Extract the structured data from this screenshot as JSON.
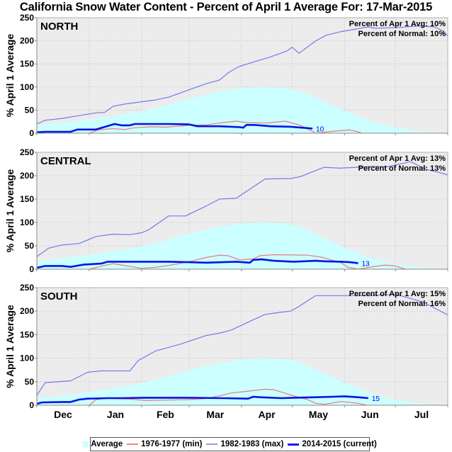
{
  "chart_data": {
    "type": "area",
    "title": "California Snow Water Content - Percent of April 1 Average For: 17-Mar-2015",
    "xlabel": "",
    "ylabel": "% April 1 Average",
    "ylim": [
      0,
      250
    ],
    "yticks": [
      0,
      50,
      100,
      150,
      200,
      250
    ],
    "x_unit": "days since Dec 1",
    "xlim": [
      0,
      243
    ],
    "months": [
      {
        "label": "Dec",
        "start": 0,
        "end": 31
      },
      {
        "label": "Jan",
        "start": 31,
        "end": 62
      },
      {
        "label": "Feb",
        "start": 62,
        "end": 90
      },
      {
        "label": "Mar",
        "start": 90,
        "end": 121
      },
      {
        "label": "Apr",
        "start": 121,
        "end": 151
      },
      {
        "label": "May",
        "start": 151,
        "end": 182
      },
      {
        "label": "Jun",
        "start": 182,
        "end": 212
      },
      {
        "label": "Jul",
        "start": 212,
        "end": 243
      }
    ],
    "grid": true,
    "legend_position": "bottom-center",
    "legend": [
      {
        "name": "Average",
        "kind": "area",
        "color": "#ccffff"
      },
      {
        "name": "1976-1977 (min)",
        "kind": "line",
        "color": "#ee7777"
      },
      {
        "name": "1982-1983 (max)",
        "kind": "line",
        "color": "#7777ee"
      },
      {
        "name": "2014-2015 (current)",
        "kind": "line",
        "color": "#0000ee"
      }
    ],
    "colors": {
      "average": "#ccffff",
      "min": "#ee7777",
      "max": "#7777ee",
      "current": "#0a14e0",
      "plot_bg": "#ececec",
      "grid": "#d0d0d0"
    },
    "panels": [
      {
        "name": "NORTH",
        "stat_apr1": "Percent of Apr 1 Avg: 10%",
        "stat_normal": "Percent of Normal: 10%",
        "end_value_label": "10",
        "average": [
          [
            0,
            17
          ],
          [
            15,
            23
          ],
          [
            31,
            30
          ],
          [
            46,
            38
          ],
          [
            62,
            48
          ],
          [
            76,
            60
          ],
          [
            90,
            75
          ],
          [
            105,
            88
          ],
          [
            121,
            97
          ],
          [
            131,
            100
          ],
          [
            143,
            99
          ],
          [
            151,
            95
          ],
          [
            160,
            85
          ],
          [
            170,
            68
          ],
          [
            182,
            48
          ],
          [
            197,
            27
          ],
          [
            212,
            12
          ],
          [
            230,
            3
          ],
          [
            243,
            0
          ]
        ],
        "min_1976_1977": [
          [
            31,
            0
          ],
          [
            36,
            7
          ],
          [
            45,
            10
          ],
          [
            52,
            8
          ],
          [
            58,
            12
          ],
          [
            68,
            14
          ],
          [
            76,
            13
          ],
          [
            90,
            17
          ],
          [
            100,
            18
          ],
          [
            108,
            22
          ],
          [
            118,
            26
          ],
          [
            124,
            23
          ],
          [
            136,
            22
          ],
          [
            147,
            26
          ],
          [
            155,
            18
          ],
          [
            161,
            8
          ],
          [
            165,
            0
          ],
          [
            175,
            4
          ],
          [
            185,
            7
          ],
          [
            190,
            3
          ],
          [
            192,
            0
          ]
        ],
        "max_1982_1983": [
          [
            0,
            20
          ],
          [
            5,
            28
          ],
          [
            15,
            32
          ],
          [
            25,
            38
          ],
          [
            35,
            44
          ],
          [
            40,
            45
          ],
          [
            45,
            58
          ],
          [
            52,
            63
          ],
          [
            70,
            72
          ],
          [
            78,
            78
          ],
          [
            100,
            107
          ],
          [
            108,
            115
          ],
          [
            113,
            130
          ],
          [
            115,
            135
          ],
          [
            120,
            145
          ],
          [
            138,
            165
          ],
          [
            148,
            178
          ],
          [
            151,
            186
          ],
          [
            155,
            173
          ],
          [
            165,
            200
          ],
          [
            171,
            212
          ],
          [
            180,
            220
          ],
          [
            196,
            230
          ],
          [
            200,
            227
          ],
          [
            215,
            229
          ],
          [
            225,
            232
          ],
          [
            235,
            230
          ],
          [
            240,
            222
          ],
          [
            247,
            195
          ],
          [
            249,
            180
          ],
          [
            255,
            172
          ],
          [
            262,
            162
          ],
          [
            267,
            150
          ],
          [
            270,
            138
          ],
          [
            273,
            121
          ],
          [
            276,
            105
          ],
          [
            280,
            68
          ],
          [
            290,
            47
          ],
          [
            300,
            32
          ],
          [
            307,
            24
          ],
          [
            309,
            27
          ],
          [
            314,
            18
          ],
          [
            320,
            0
          ]
        ],
        "current_2014_2015": [
          [
            0,
            2
          ],
          [
            5,
            3
          ],
          [
            20,
            3
          ],
          [
            24,
            8
          ],
          [
            35,
            8
          ],
          [
            46,
            20
          ],
          [
            50,
            17
          ],
          [
            55,
            17
          ],
          [
            58,
            20
          ],
          [
            78,
            20
          ],
          [
            90,
            19
          ],
          [
            95,
            15
          ],
          [
            108,
            15
          ],
          [
            120,
            13
          ],
          [
            122,
            12
          ],
          [
            124,
            18
          ],
          [
            128,
            18
          ],
          [
            132,
            17
          ],
          [
            138,
            15
          ],
          [
            150,
            14
          ],
          [
            160,
            11
          ],
          [
            163,
            10
          ]
        ]
      },
      {
        "name": "CENTRAL",
        "stat_apr1": "Percent of Apr 1 Avg: 13%",
        "stat_normal": "Percent of Normal: 13%",
        "end_value_label": "13",
        "average": [
          [
            0,
            17
          ],
          [
            15,
            24
          ],
          [
            31,
            31
          ],
          [
            46,
            39
          ],
          [
            62,
            49
          ],
          [
            76,
            61
          ],
          [
            90,
            76
          ],
          [
            105,
            89
          ],
          [
            121,
            97
          ],
          [
            131,
            100
          ],
          [
            143,
            99
          ],
          [
            151,
            95
          ],
          [
            160,
            84
          ],
          [
            170,
            67
          ],
          [
            182,
            46
          ],
          [
            197,
            25
          ],
          [
            212,
            10
          ],
          [
            230,
            2
          ],
          [
            243,
            0
          ]
        ],
        "min_1976_1977": [
          [
            31,
            0
          ],
          [
            40,
            8
          ],
          [
            45,
            12
          ],
          [
            55,
            6
          ],
          [
            62,
            2
          ],
          [
            70,
            4
          ],
          [
            78,
            8
          ],
          [
            90,
            16
          ],
          [
            100,
            25
          ],
          [
            108,
            30
          ],
          [
            113,
            29
          ],
          [
            120,
            20
          ],
          [
            128,
            22
          ],
          [
            132,
            29
          ],
          [
            140,
            31
          ],
          [
            160,
            30
          ],
          [
            168,
            26
          ],
          [
            180,
            14
          ],
          [
            184,
            4
          ],
          [
            190,
            0
          ],
          [
            200,
            6
          ],
          [
            206,
            9
          ],
          [
            212,
            7
          ],
          [
            218,
            0
          ]
        ],
        "max_1982_1983": [
          [
            0,
            27
          ],
          [
            7,
            45
          ],
          [
            15,
            52
          ],
          [
            25,
            55
          ],
          [
            35,
            70
          ],
          [
            45,
            75
          ],
          [
            55,
            74
          ],
          [
            62,
            78
          ],
          [
            66,
            84
          ],
          [
            78,
            114
          ],
          [
            88,
            114
          ],
          [
            100,
            135
          ],
          [
            108,
            150
          ],
          [
            118,
            152
          ],
          [
            135,
            193
          ],
          [
            150,
            194
          ],
          [
            156,
            198
          ],
          [
            162,
            207
          ],
          [
            170,
            218
          ],
          [
            179,
            216
          ],
          [
            200,
            220
          ],
          [
            207,
            219
          ],
          [
            221,
            230
          ],
          [
            230,
            214
          ],
          [
            242,
            203
          ],
          [
            256,
            180
          ],
          [
            266,
            152
          ],
          [
            278,
            125
          ],
          [
            289,
            108
          ],
          [
            301,
            87
          ],
          [
            310,
            70
          ],
          [
            320,
            49
          ],
          [
            329,
            35
          ],
          [
            341,
            16
          ],
          [
            353,
            0
          ]
        ],
        "current_2014_2015": [
          [
            0,
            3
          ],
          [
            5,
            7
          ],
          [
            15,
            7
          ],
          [
            20,
            5
          ],
          [
            28,
            10
          ],
          [
            38,
            12
          ],
          [
            42,
            16
          ],
          [
            70,
            16
          ],
          [
            78,
            16
          ],
          [
            90,
            15
          ],
          [
            100,
            14
          ],
          [
            118,
            16
          ],
          [
            126,
            14
          ],
          [
            128,
            20
          ],
          [
            133,
            21
          ],
          [
            140,
            18
          ],
          [
            152,
            16
          ],
          [
            158,
            17
          ],
          [
            165,
            18
          ],
          [
            170,
            17
          ],
          [
            180,
            16
          ],
          [
            185,
            15
          ],
          [
            190,
            13
          ]
        ]
      },
      {
        "name": "SOUTH",
        "stat_apr1": "Percent of Apr 1 Avg: 15%",
        "stat_normal": "Percent of Normal: 16%",
        "end_value_label": "15",
        "average": [
          [
            0,
            14
          ],
          [
            15,
            21
          ],
          [
            31,
            28
          ],
          [
            46,
            36
          ],
          [
            62,
            47
          ],
          [
            76,
            59
          ],
          [
            90,
            74
          ],
          [
            105,
            87
          ],
          [
            121,
            97
          ],
          [
            131,
            100
          ],
          [
            143,
            99
          ],
          [
            151,
            95
          ],
          [
            160,
            85
          ],
          [
            170,
            68
          ],
          [
            182,
            47
          ],
          [
            197,
            26
          ],
          [
            212,
            11
          ],
          [
            230,
            2
          ],
          [
            243,
            0
          ]
        ],
        "min_1976_1977": [
          [
            31,
            0
          ],
          [
            35,
            12
          ],
          [
            42,
            15
          ],
          [
            55,
            13
          ],
          [
            65,
            10
          ],
          [
            78,
            11
          ],
          [
            90,
            12
          ],
          [
            100,
            14
          ],
          [
            108,
            20
          ],
          [
            115,
            26
          ],
          [
            125,
            30
          ],
          [
            135,
            34
          ],
          [
            140,
            33
          ],
          [
            150,
            22
          ],
          [
            160,
            12
          ],
          [
            165,
            4
          ],
          [
            170,
            2
          ],
          [
            180,
            8
          ],
          [
            190,
            4
          ],
          [
            195,
            0
          ]
        ],
        "max_1982_1983": [
          [
            0,
            21
          ],
          [
            5,
            48
          ],
          [
            20,
            52
          ],
          [
            30,
            70
          ],
          [
            38,
            73
          ],
          [
            55,
            73
          ],
          [
            60,
            95
          ],
          [
            70,
            115
          ],
          [
            85,
            130
          ],
          [
            100,
            148
          ],
          [
            110,
            155
          ],
          [
            115,
            160
          ],
          [
            124,
            175
          ],
          [
            130,
            185
          ],
          [
            135,
            193
          ],
          [
            145,
            198
          ],
          [
            150,
            200
          ],
          [
            155,
            210
          ],
          [
            160,
            222
          ],
          [
            165,
            233
          ],
          [
            195,
            233
          ],
          [
            212,
            236
          ],
          [
            228,
            220
          ],
          [
            260,
            160
          ],
          [
            290,
            100
          ],
          [
            310,
            65
          ],
          [
            340,
            20
          ],
          [
            362,
            0
          ]
        ],
        "current_2014_2015": [
          [
            0,
            3
          ],
          [
            3,
            6
          ],
          [
            15,
            7
          ],
          [
            20,
            7
          ],
          [
            25,
            12
          ],
          [
            30,
            14
          ],
          [
            42,
            15
          ],
          [
            50,
            15
          ],
          [
            63,
            16
          ],
          [
            90,
            16
          ],
          [
            110,
            15
          ],
          [
            125,
            14
          ],
          [
            128,
            18
          ],
          [
            132,
            17
          ],
          [
            145,
            15
          ],
          [
            152,
            16
          ],
          [
            165,
            17
          ],
          [
            175,
            18
          ],
          [
            182,
            19
          ],
          [
            190,
            17
          ],
          [
            196,
            15
          ]
        ]
      }
    ]
  }
}
